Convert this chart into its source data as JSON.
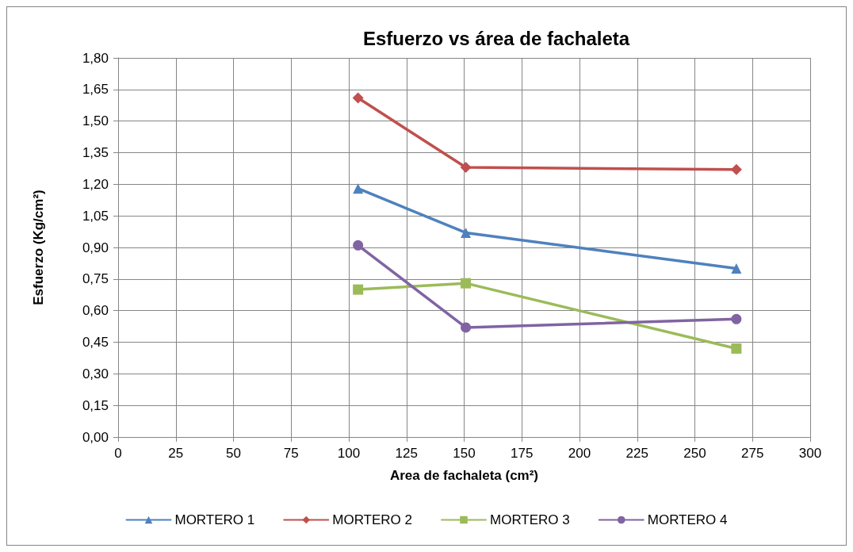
{
  "chart_data": {
    "type": "line",
    "title": "Esfuerzo vs área de fachaleta",
    "xlabel": "Area de fachaleta (cm²)",
    "ylabel": "Esfuerzo (Kg/cm²)",
    "x": [
      104,
      150.7,
      268
    ],
    "series": [
      {
        "name": "MORTERO 1",
        "color": "#4f81bd",
        "marker": "triangle",
        "values": [
          1.18,
          0.97,
          0.8
        ]
      },
      {
        "name": "MORTERO 2",
        "color": "#c0504d",
        "marker": "diamond",
        "values": [
          1.61,
          1.28,
          1.27
        ]
      },
      {
        "name": "MORTERO 3",
        "color": "#9bbb59",
        "marker": "square",
        "values": [
          0.7,
          0.73,
          0.42
        ]
      },
      {
        "name": "MORTERO 4",
        "color": "#8064a2",
        "marker": "circle",
        "values": [
          0.91,
          0.52,
          0.56
        ]
      }
    ],
    "xlim": [
      0,
      300
    ],
    "xticks": [
      0,
      25,
      50,
      75,
      100,
      125,
      150,
      175,
      200,
      225,
      250,
      275,
      300
    ],
    "ylim": [
      0,
      1.8
    ],
    "yticks": [
      {
        "value": 0,
        "label": "0,00"
      },
      {
        "value": 0.15,
        "label": "0,15"
      },
      {
        "value": 0.3,
        "label": "0,30"
      },
      {
        "value": 0.45,
        "label": "0,45"
      },
      {
        "value": 0.6,
        "label": "0,60"
      },
      {
        "value": 0.75,
        "label": "0,75"
      },
      {
        "value": 0.9,
        "label": "0,90"
      },
      {
        "value": 1.05,
        "label": "1,05"
      },
      {
        "value": 1.2,
        "label": "1,20"
      },
      {
        "value": 1.35,
        "label": "1,35"
      },
      {
        "value": 1.5,
        "label": "1,50"
      },
      {
        "value": 1.65,
        "label": "1,65"
      },
      {
        "value": 1.8,
        "label": "1,80"
      }
    ],
    "grid": true,
    "legend": "bottom",
    "line_style": "solid"
  }
}
